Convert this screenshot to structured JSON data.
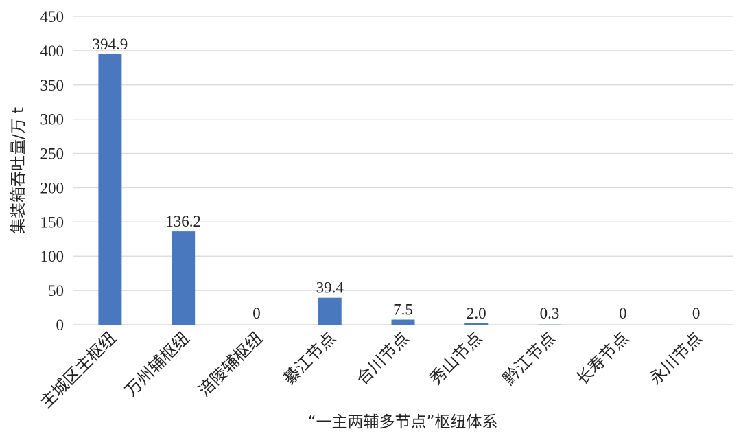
{
  "chart_data": {
    "type": "bar",
    "categories": [
      "主城区主枢纽",
      "万州辅枢纽",
      "涪陵辅枢纽",
      "綦江节点",
      "合川节点",
      "秀山节点",
      "黔江节点",
      "长寿节点",
      "永川节点"
    ],
    "values": [
      394.9,
      136.2,
      0,
      39.4,
      7.5,
      2.0,
      0.3,
      0,
      0
    ],
    "data_labels": [
      "394.9",
      "136.2",
      "0",
      "39.4",
      "7.5",
      "2.0",
      "0.3",
      "0",
      "0"
    ],
    "yticks": [
      "0",
      "50",
      "100",
      "150",
      "200",
      "250",
      "300",
      "350",
      "400",
      "450"
    ],
    "xlabel": "“一主两辅多节点”枢纽体系",
    "ylabel": "集装箱吞吐量/万 t",
    "ylim": [
      0,
      450
    ],
    "grid": true,
    "bar_color": "#4a78be",
    "grid_color": "#d9d9d9"
  }
}
